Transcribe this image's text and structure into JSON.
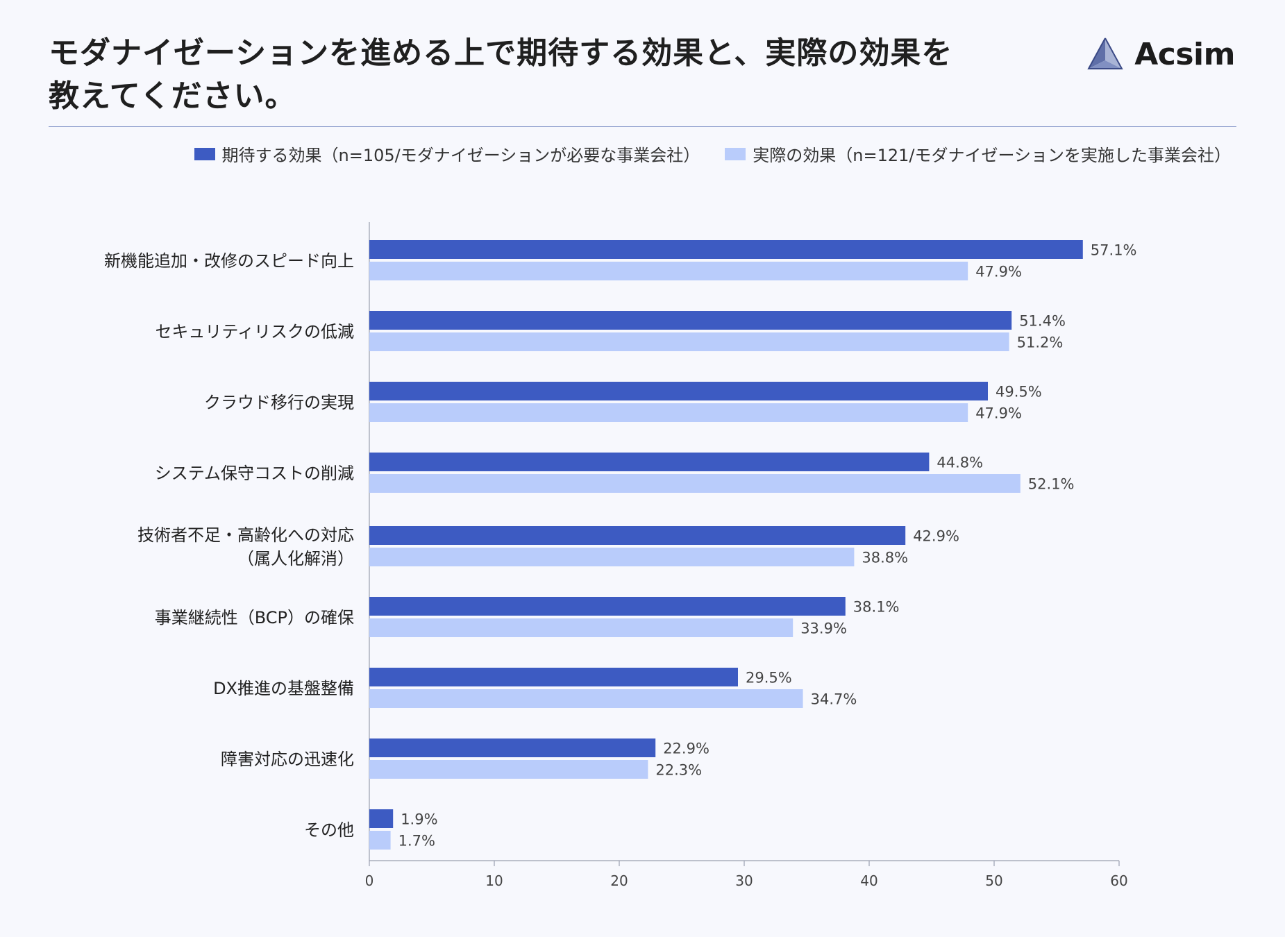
{
  "header": {
    "title_line1": "モダナイゼーションを進める上で期待する効果と、実際の効果を",
    "title_line2": "教えてください。",
    "logo_text": "Acsim"
  },
  "colors": {
    "expected": "#3d5bc2",
    "actual": "#b9ccfb",
    "rule": "#8797c9"
  },
  "chart_data": {
    "type": "bar",
    "orientation": "horizontal",
    "categories": [
      "新機能追加・改修のスピード向上",
      "セキュリティリスクの低減",
      "クラウド移行の実現",
      "システム保守コストの削減",
      "技術者不足・高齢化への対応\n（属人化解消）",
      "事業継続性（BCP）の確保",
      "DX推進の基盤整備",
      "障害対応の迅速化",
      "その他"
    ],
    "series": [
      {
        "name": "期待する効果（n=105/モダナイゼーションが必要な事業会社）",
        "color": "#3d5bc2",
        "values": [
          57.1,
          51.4,
          49.5,
          44.8,
          42.9,
          38.1,
          29.5,
          22.9,
          1.9
        ]
      },
      {
        "name": "実際の効果（n=121/モダナイゼーションを実施した事業会社）",
        "color": "#b9ccfb",
        "values": [
          47.9,
          51.2,
          47.9,
          52.1,
          38.8,
          33.9,
          34.7,
          22.3,
          1.7
        ]
      }
    ],
    "value_suffix": "%",
    "xlim": [
      0,
      60
    ],
    "xticks": [
      0,
      10,
      20,
      30,
      40,
      50,
      60
    ],
    "grid": false,
    "legend_position": "top-right"
  }
}
